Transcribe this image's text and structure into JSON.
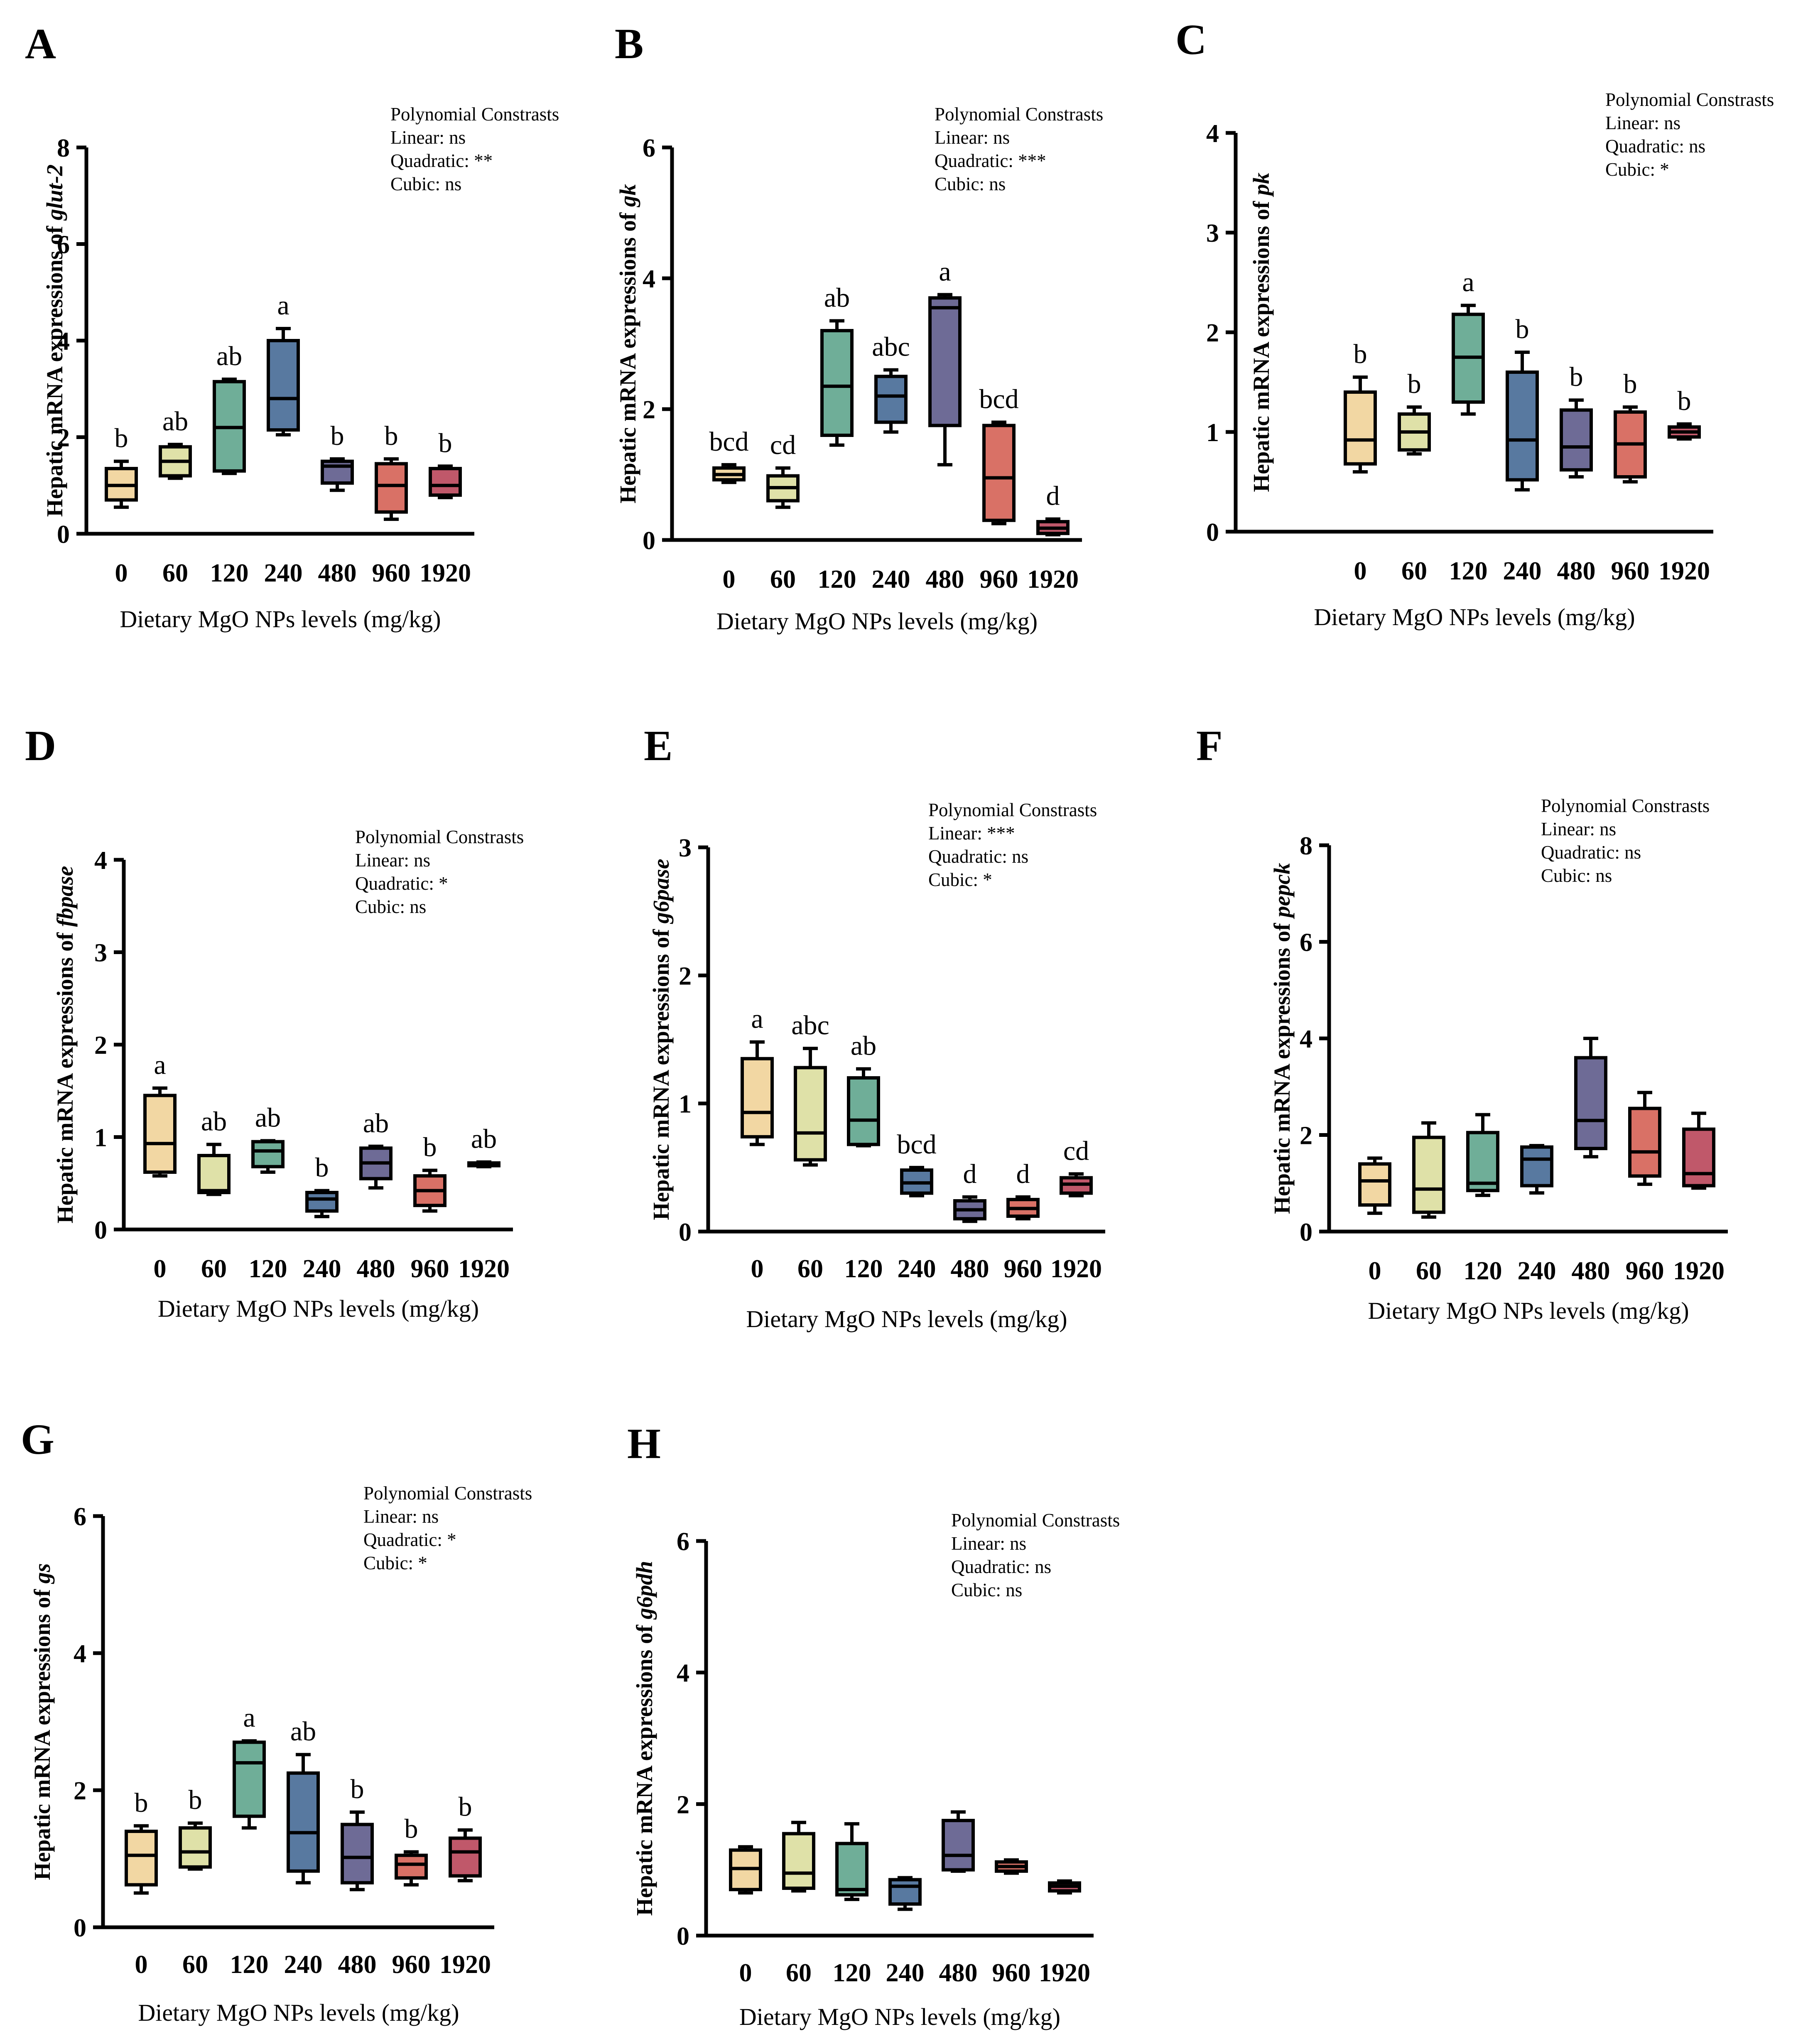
{
  "figure": {
    "x_axis_label": "Dietary MgO NPs levels (mg/kg)",
    "y_axis_prefix": "Hepatic mRNA expressions of ",
    "box_colors": [
      "#f2d7a3",
      "#dfe1a8",
      "#6fae98",
      "#5879a0",
      "#6e6b96",
      "#d97166",
      "#c0586a"
    ]
  },
  "chart_data": [
    {
      "panel": "A",
      "type": "box",
      "gene": "glut-2",
      "ylim": [
        0,
        8
      ],
      "yticks": [
        0,
        2,
        4,
        6,
        8
      ],
      "categories": [
        "0",
        "60",
        "120",
        "240",
        "480",
        "960",
        "1920"
      ],
      "xlabel": "Dietary MgO NPs levels (mg/kg)",
      "ylabel": "Hepatic mRNA expressions of glut-2",
      "contrasts": [
        "Polynomial Constrasts",
        "Linear: ns",
        "Quadratic: **",
        "Cubic: ns"
      ],
      "boxes": [
        {
          "min": 0.55,
          "q1": 0.7,
          "median": 1.0,
          "q3": 1.35,
          "max": 1.5,
          "sig": "b"
        },
        {
          "min": 1.15,
          "q1": 1.2,
          "median": 1.5,
          "q3": 1.8,
          "max": 1.85,
          "sig": "ab"
        },
        {
          "min": 1.25,
          "q1": 1.3,
          "median": 2.2,
          "q3": 3.15,
          "max": 3.2,
          "sig": "ab"
        },
        {
          "min": 2.05,
          "q1": 2.15,
          "median": 2.8,
          "q3": 4.0,
          "max": 4.25,
          "sig": "a"
        },
        {
          "min": 0.9,
          "q1": 1.05,
          "median": 1.4,
          "q3": 1.5,
          "max": 1.55,
          "sig": "b"
        },
        {
          "min": 0.3,
          "q1": 0.45,
          "median": 1.0,
          "q3": 1.45,
          "max": 1.55,
          "sig": "b"
        },
        {
          "min": 0.75,
          "q1": 0.8,
          "median": 1.0,
          "q3": 1.35,
          "max": 1.4,
          "sig": "b"
        }
      ]
    },
    {
      "panel": "B",
      "type": "box",
      "gene": "gk",
      "ylim": [
        0,
        6
      ],
      "yticks": [
        0,
        2,
        4,
        6
      ],
      "categories": [
        "0",
        "60",
        "120",
        "240",
        "480",
        "960",
        "1920"
      ],
      "xlabel": "Dietary MgO NPs levels (mg/kg)",
      "ylabel": "Hepatic mRNA expressions of gk",
      "contrasts": [
        "Polynomial Constrasts",
        "Linear: ns",
        "Quadratic: ***",
        "Cubic: ns"
      ],
      "boxes": [
        {
          "min": 0.88,
          "q1": 0.92,
          "median": 1.0,
          "q3": 1.1,
          "max": 1.15,
          "sig": "bcd"
        },
        {
          "min": 0.5,
          "q1": 0.6,
          "median": 0.8,
          "q3": 0.98,
          "max": 1.1,
          "sig": "cd"
        },
        {
          "min": 1.45,
          "q1": 1.6,
          "median": 2.35,
          "q3": 3.2,
          "max": 3.35,
          "sig": "ab"
        },
        {
          "min": 1.65,
          "q1": 1.8,
          "median": 2.2,
          "q3": 2.5,
          "max": 2.6,
          "sig": "abc"
        },
        {
          "min": 1.15,
          "q1": 1.75,
          "median": 3.55,
          "q3": 3.7,
          "max": 3.75,
          "sig": "a"
        },
        {
          "min": 0.25,
          "q1": 0.3,
          "median": 0.95,
          "q3": 1.75,
          "max": 1.8,
          "sig": "bcd"
        },
        {
          "min": 0.08,
          "q1": 0.1,
          "median": 0.18,
          "q3": 0.28,
          "max": 0.32,
          "sig": "d"
        }
      ]
    },
    {
      "panel": "C",
      "type": "box",
      "gene": "pk",
      "ylim": [
        0,
        4
      ],
      "yticks": [
        0,
        1,
        2,
        3,
        4
      ],
      "categories": [
        "0",
        "60",
        "120",
        "240",
        "480",
        "960",
        "1920"
      ],
      "xlabel": "Dietary MgO NPs levels (mg/kg)",
      "ylabel": "Hepatic mRNA expressions of pk",
      "contrasts": [
        "Polynomial Constrasts",
        "Linear: ns",
        "Quadratic: ns",
        "Cubic: *"
      ],
      "boxes": [
        {
          "min": 0.6,
          "q1": 0.68,
          "median": 0.92,
          "q3": 1.4,
          "max": 1.55,
          "sig": "b"
        },
        {
          "min": 0.78,
          "q1": 0.82,
          "median": 1.0,
          "q3": 1.18,
          "max": 1.25,
          "sig": "b"
        },
        {
          "min": 1.18,
          "q1": 1.3,
          "median": 1.75,
          "q3": 2.18,
          "max": 2.27,
          "sig": "a"
        },
        {
          "min": 0.42,
          "q1": 0.52,
          "median": 0.92,
          "q3": 1.6,
          "max": 1.8,
          "sig": "b"
        },
        {
          "min": 0.55,
          "q1": 0.62,
          "median": 0.85,
          "q3": 1.22,
          "max": 1.32,
          "sig": "b"
        },
        {
          "min": 0.5,
          "q1": 0.55,
          "median": 0.88,
          "q3": 1.2,
          "max": 1.25,
          "sig": "b"
        },
        {
          "min": 0.93,
          "q1": 0.95,
          "median": 1.0,
          "q3": 1.05,
          "max": 1.08,
          "sig": "b"
        }
      ]
    },
    {
      "panel": "D",
      "type": "box",
      "gene": "fbpase",
      "ylim": [
        0,
        4
      ],
      "yticks": [
        0,
        1,
        2,
        3,
        4
      ],
      "categories": [
        "0",
        "60",
        "120",
        "240",
        "480",
        "960",
        "1920"
      ],
      "xlabel": "Dietary MgO NPs levels (mg/kg)",
      "ylabel": "Hepatic mRNA expressions of fbpase",
      "contrasts": [
        "Polynomial Constrasts",
        "Linear: ns",
        "Quadratic: *",
        "Cubic: ns"
      ],
      "boxes": [
        {
          "min": 0.58,
          "q1": 0.62,
          "median": 0.93,
          "q3": 1.45,
          "max": 1.53,
          "sig": "a"
        },
        {
          "min": 0.38,
          "q1": 0.4,
          "median": 0.42,
          "q3": 0.8,
          "max": 0.92,
          "sig": "ab"
        },
        {
          "min": 0.62,
          "q1": 0.68,
          "median": 0.85,
          "q3": 0.95,
          "max": 0.96,
          "sig": "ab"
        },
        {
          "min": 0.14,
          "q1": 0.2,
          "median": 0.33,
          "q3": 0.4,
          "max": 0.42,
          "sig": "b"
        },
        {
          "min": 0.45,
          "q1": 0.55,
          "median": 0.72,
          "q3": 0.88,
          "max": 0.9,
          "sig": "ab"
        },
        {
          "min": 0.2,
          "q1": 0.26,
          "median": 0.42,
          "q3": 0.58,
          "max": 0.64,
          "sig": "b"
        },
        {
          "min": 0.68,
          "q1": 0.69,
          "median": 0.7,
          "q3": 0.72,
          "max": 0.73,
          "sig": "ab"
        }
      ]
    },
    {
      "panel": "E",
      "type": "box",
      "gene": "g6pase",
      "ylim": [
        0,
        3
      ],
      "yticks": [
        0,
        1,
        2,
        3
      ],
      "categories": [
        "0",
        "60",
        "120",
        "240",
        "480",
        "960",
        "1920"
      ],
      "xlabel": "Dietary MgO NPs levels (mg/kg)",
      "ylabel": "Hepatic mRNA expressions of g6pase",
      "contrasts": [
        "Polynomial Constrasts",
        "Linear: ***",
        "Quadratic: ns",
        "Cubic: *"
      ],
      "boxes": [
        {
          "min": 0.68,
          "q1": 0.74,
          "median": 0.93,
          "q3": 1.35,
          "max": 1.48,
          "sig": "a"
        },
        {
          "min": 0.52,
          "q1": 0.56,
          "median": 0.77,
          "q3": 1.28,
          "max": 1.43,
          "sig": "abc"
        },
        {
          "min": 0.67,
          "q1": 0.68,
          "median": 0.87,
          "q3": 1.2,
          "max": 1.27,
          "sig": "ab"
        },
        {
          "min": 0.28,
          "q1": 0.3,
          "median": 0.38,
          "q3": 0.48,
          "max": 0.5,
          "sig": "bcd"
        },
        {
          "min": 0.08,
          "q1": 0.1,
          "median": 0.17,
          "q3": 0.24,
          "max": 0.27,
          "sig": "d"
        },
        {
          "min": 0.1,
          "q1": 0.12,
          "median": 0.18,
          "q3": 0.25,
          "max": 0.27,
          "sig": "d"
        },
        {
          "min": 0.28,
          "q1": 0.3,
          "median": 0.37,
          "q3": 0.42,
          "max": 0.45,
          "sig": "cd"
        }
      ]
    },
    {
      "panel": "F",
      "type": "box",
      "gene": "pepck",
      "ylim": [
        0,
        8
      ],
      "yticks": [
        0,
        2,
        4,
        6,
        8
      ],
      "categories": [
        "0",
        "60",
        "120",
        "240",
        "480",
        "960",
        "1920"
      ],
      "xlabel": "Dietary MgO NPs levels (mg/kg)",
      "ylabel": "Hepatic mRNA expressions of pepck",
      "contrasts": [
        "Polynomial Constrasts",
        "Linear: ns",
        "Quadratic: ns",
        "Cubic: ns"
      ],
      "boxes": [
        {
          "min": 0.38,
          "q1": 0.55,
          "median": 1.05,
          "q3": 1.4,
          "max": 1.52,
          "sig": ""
        },
        {
          "min": 0.3,
          "q1": 0.4,
          "median": 0.88,
          "q3": 1.95,
          "max": 2.25,
          "sig": ""
        },
        {
          "min": 0.75,
          "q1": 0.85,
          "median": 1.0,
          "q3": 2.05,
          "max": 2.42,
          "sig": ""
        },
        {
          "min": 0.8,
          "q1": 0.95,
          "median": 1.5,
          "q3": 1.75,
          "max": 1.78,
          "sig": ""
        },
        {
          "min": 1.55,
          "q1": 1.72,
          "median": 2.3,
          "q3": 3.6,
          "max": 4.0,
          "sig": ""
        },
        {
          "min": 0.98,
          "q1": 1.15,
          "median": 1.65,
          "q3": 2.55,
          "max": 2.88,
          "sig": ""
        },
        {
          "min": 0.9,
          "q1": 0.95,
          "median": 1.2,
          "q3": 2.12,
          "max": 2.45,
          "sig": ""
        }
      ]
    },
    {
      "panel": "G",
      "type": "box",
      "gene": "gs",
      "ylim": [
        0,
        6
      ],
      "yticks": [
        0,
        2,
        4,
        6
      ],
      "categories": [
        "0",
        "60",
        "120",
        "240",
        "480",
        "960",
        "1920"
      ],
      "xlabel": "Dietary MgO NPs levels (mg/kg)",
      "ylabel": "Hepatic mRNA expressions of gs",
      "contrasts": [
        "Polynomial Constrasts",
        "Linear: ns",
        "Quadratic: *",
        "Cubic: *"
      ],
      "boxes": [
        {
          "min": 0.5,
          "q1": 0.62,
          "median": 1.05,
          "q3": 1.4,
          "max": 1.48,
          "sig": "b"
        },
        {
          "min": 0.85,
          "q1": 0.88,
          "median": 1.1,
          "q3": 1.45,
          "max": 1.52,
          "sig": "b"
        },
        {
          "min": 1.45,
          "q1": 1.62,
          "median": 2.4,
          "q3": 2.7,
          "max": 2.72,
          "sig": "a"
        },
        {
          "min": 0.65,
          "q1": 0.82,
          "median": 1.38,
          "q3": 2.25,
          "max": 2.52,
          "sig": "ab"
        },
        {
          "min": 0.55,
          "q1": 0.65,
          "median": 1.02,
          "q3": 1.5,
          "max": 1.68,
          "sig": "b"
        },
        {
          "min": 0.62,
          "q1": 0.72,
          "median": 0.92,
          "q3": 1.05,
          "max": 1.1,
          "sig": "b"
        },
        {
          "min": 0.68,
          "q1": 0.75,
          "median": 1.1,
          "q3": 1.3,
          "max": 1.42,
          "sig": "b"
        }
      ]
    },
    {
      "panel": "H",
      "type": "box",
      "gene": "g6pdh",
      "ylim": [
        0,
        6
      ],
      "yticks": [
        0,
        2,
        4,
        6
      ],
      "categories": [
        "0",
        "60",
        "120",
        "240",
        "480",
        "960",
        "1920"
      ],
      "xlabel": "Dietary MgO NPs levels (mg/kg)",
      "ylabel": "Hepatic mRNA expressions of g6pdh",
      "contrasts": [
        "Polynomial Constrasts",
        "Linear: ns",
        "Quadratic: ns",
        "Cubic: ns"
      ],
      "boxes": [
        {
          "min": 0.65,
          "q1": 0.7,
          "median": 1.02,
          "q3": 1.3,
          "max": 1.35,
          "sig": ""
        },
        {
          "min": 0.68,
          "q1": 0.72,
          "median": 0.95,
          "q3": 1.55,
          "max": 1.72,
          "sig": ""
        },
        {
          "min": 0.55,
          "q1": 0.62,
          "median": 0.7,
          "q3": 1.4,
          "max": 1.7,
          "sig": ""
        },
        {
          "min": 0.4,
          "q1": 0.48,
          "median": 0.75,
          "q3": 0.85,
          "max": 0.88,
          "sig": ""
        },
        {
          "min": 0.98,
          "q1": 1.0,
          "median": 1.22,
          "q3": 1.75,
          "max": 1.88,
          "sig": ""
        },
        {
          "min": 0.95,
          "q1": 0.98,
          "median": 1.05,
          "q3": 1.12,
          "max": 1.15,
          "sig": ""
        },
        {
          "min": 0.65,
          "q1": 0.68,
          "median": 0.75,
          "q3": 0.8,
          "max": 0.83,
          "sig": ""
        }
      ]
    }
  ]
}
